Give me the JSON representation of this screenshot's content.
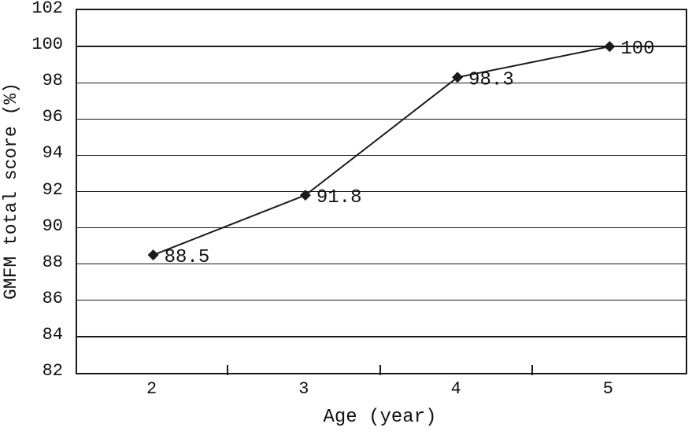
{
  "figure": {
    "background_color": "#ffffff",
    "line_color": "#1a1a1a",
    "marker_shape": "diamond",
    "marker_color": "#1a1a1a",
    "text_color": "#111111"
  },
  "chart_data": {
    "type": "line",
    "title": "",
    "xlabel": "Age (year)",
    "ylabel": "GMFM total score (%)",
    "x": [
      2,
      3,
      4,
      5
    ],
    "x_tick_labels": [
      "2",
      "3",
      "4",
      "5"
    ],
    "series": [
      {
        "name": "GMFM total score",
        "values": [
          88.5,
          91.8,
          98.3,
          100
        ]
      }
    ],
    "point_labels": [
      "88.5",
      "91.8",
      "98.3",
      "100"
    ],
    "y_ticks": [
      82,
      84,
      86,
      88,
      90,
      92,
      94,
      96,
      98,
      100,
      102
    ],
    "y_tick_labels": [
      "82",
      "84",
      "86",
      "88",
      "90",
      "92",
      "94",
      "96",
      "98",
      "100",
      "102"
    ],
    "ylim": [
      82,
      102
    ],
    "grid": "horizontal",
    "legend": "none"
  }
}
